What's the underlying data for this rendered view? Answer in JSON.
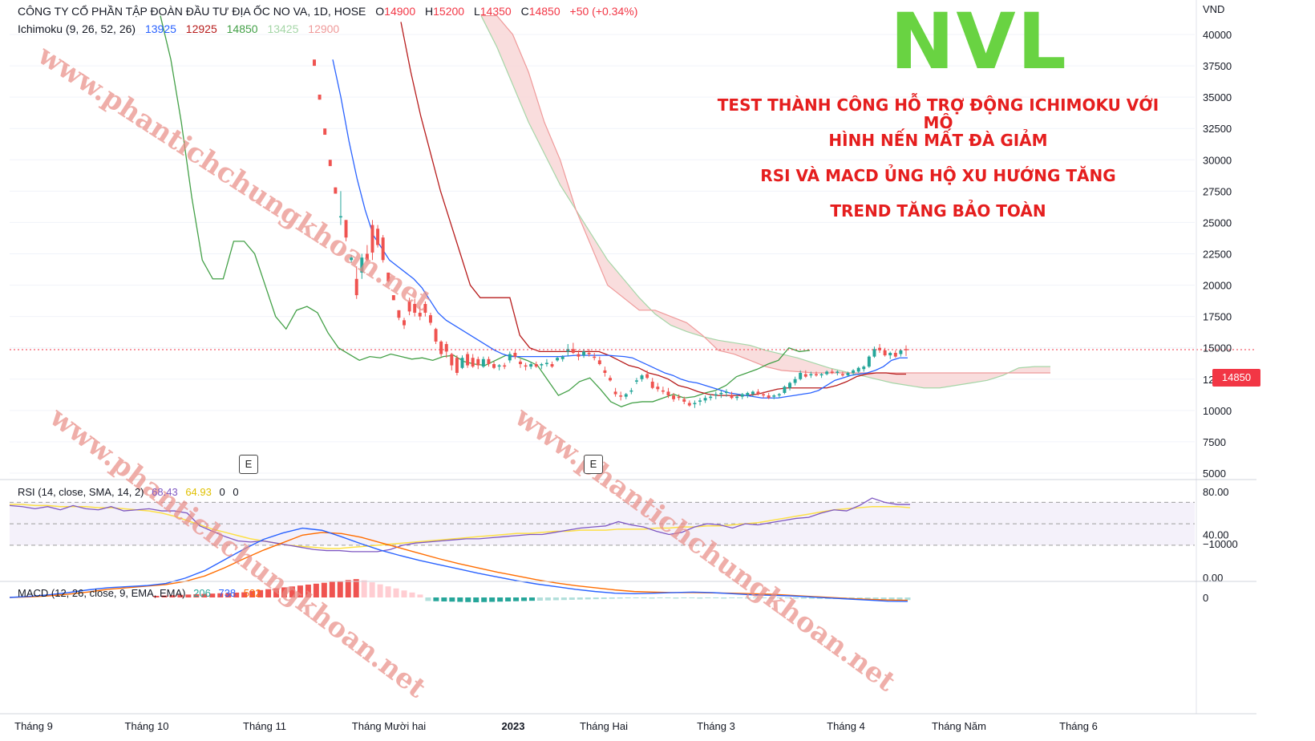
{
  "header": {
    "symbol_line": "CÔNG TY CỔ PHẦN TẬP ĐOÀN ĐẦU TƯ ĐỊA ỐC NO VA, 1D, HOSE",
    "o_label": "O",
    "o_value": "14900",
    "h_label": "H",
    "h_value": "15200",
    "l_label": "L",
    "l_value": "14350",
    "c_label": "C",
    "c_value": "14850",
    "change": "+50 (+0.34%)"
  },
  "ichimoku": {
    "label": "Ichimoku (9, 26, 52, 26)",
    "values": [
      "13925",
      "12925",
      "14850",
      "13425",
      "12900"
    ],
    "colors": [
      "#2962ff",
      "#b71c1c",
      "#43a047",
      "#a5d6a7",
      "#ef9a9a"
    ]
  },
  "annotation": {
    "ticker": "NVL",
    "line1": "TEST THÀNH CÔNG HỖ TRỢ ĐỘNG ICHIMOKU VỚI MÔ",
    "line2": "HÌNH NẾN MẤT ĐÀ GIẢM",
    "line3": "RSI VÀ MACD ỦNG HỘ XU HƯỚNG TĂNG",
    "line4": "TREND TĂNG BẢO TOÀN"
  },
  "watermark": "www.phantichchungkhoan.net",
  "earnings_marker": "E",
  "rsi_pane": {
    "label": "RSI (14, close, SMA, 14, 2)",
    "values": [
      "68.43",
      "64.93",
      "0",
      "0"
    ],
    "axis": [
      "80.00",
      "40.00",
      "0.00"
    ]
  },
  "macd_pane": {
    "label": "MACD (12, 26, close, 9, EMA, EMA)",
    "values": [
      "206",
      "738",
      "532"
    ],
    "axis": [
      "0",
      "−10000"
    ]
  },
  "colors": {
    "up": "#26a69a",
    "down": "#ef5350",
    "tenkan": "#2962ff",
    "kijun": "#b71c1c",
    "chikou": "#43a047",
    "cloud_bear": "#f8d7d7",
    "cloud_bull": "#dff0df",
    "rsi": "#7e57c2",
    "rsi_ma": "#fde047",
    "macd": "#2962ff",
    "signal": "#ff6d00"
  },
  "chart_data": {
    "type": "candlestick",
    "currency": "VND",
    "last_price": "14850",
    "y_axis": [
      "VND",
      "40000",
      "37500",
      "35000",
      "32500",
      "30000",
      "27500",
      "25000",
      "22500",
      "20000",
      "17500",
      "15000",
      "12500",
      "10000",
      "7500",
      "5000"
    ],
    "x_ticks": [
      "Tháng 9",
      "Tháng 10",
      "Tháng 11",
      "Tháng Mười hai",
      "2023",
      "Tháng Hai",
      "Tháng 3",
      "Tháng 4",
      "Tháng Năm",
      "Tháng 6"
    ],
    "ylim": [
      5000,
      41500
    ],
    "candles_ohlc": [
      [
        38000,
        38000,
        37500,
        37500
      ],
      [
        35200,
        35200,
        34800,
        34800
      ],
      [
        32500,
        32500,
        32000,
        32000
      ],
      [
        30000,
        30000,
        29500,
        29500
      ],
      [
        27800,
        27800,
        27300,
        27300
      ],
      [
        25500,
        27500,
        24800,
        25500
      ],
      [
        25200,
        25200,
        23500,
        23800
      ],
      [
        22000,
        22400,
        21800,
        22200
      ],
      [
        20500,
        21500,
        18900,
        19200
      ],
      [
        21000,
        22500,
        20500,
        22200
      ],
      [
        22500,
        23200,
        21900,
        22000
      ],
      [
        24800,
        25200,
        22000,
        22600
      ],
      [
        24500,
        24800,
        23000,
        23200
      ],
      [
        23800,
        24000,
        21800,
        22000
      ],
      [
        21000,
        21000,
        20200,
        20300
      ],
      [
        19200,
        19200,
        18800,
        18800
      ],
      [
        18000,
        18000,
        17200,
        17400
      ],
      [
        17200,
        17400,
        16500,
        16800
      ],
      [
        18700,
        19000,
        17600,
        17900
      ],
      [
        18500,
        18900,
        17500,
        17800
      ],
      [
        17800,
        18300,
        17200,
        17500
      ],
      [
        18500,
        18700,
        17500,
        17800
      ],
      [
        17600,
        17800,
        16800,
        17000
      ],
      [
        16500,
        16600,
        15300,
        15500
      ],
      [
        15500,
        15600,
        14300,
        14500
      ],
      [
        15300,
        15500,
        14200,
        14700
      ],
      [
        14500,
        14600,
        13200,
        13600
      ],
      [
        14200,
        14400,
        12800,
        13000
      ],
      [
        13400,
        14400,
        13300,
        14200
      ],
      [
        14500,
        14700,
        13400,
        13600
      ],
      [
        14200,
        14500,
        13400,
        13500
      ],
      [
        14100,
        14300,
        13300,
        13600
      ],
      [
        13500,
        14300,
        13400,
        14100
      ],
      [
        14100,
        14300,
        13500,
        13700
      ],
      [
        13700,
        13900,
        13300,
        13400
      ],
      [
        13500,
        13700,
        13200,
        13600
      ],
      [
        13600,
        13800,
        13300,
        13500
      ],
      [
        14000,
        14700,
        13800,
        14500
      ],
      [
        14600,
        14800,
        14100,
        14300
      ],
      [
        13900,
        14100,
        13400,
        13700
      ],
      [
        13600,
        13800,
        13200,
        13500
      ],
      [
        13500,
        13900,
        13300,
        13700
      ],
      [
        13700,
        13900,
        13400,
        13500
      ],
      [
        13600,
        13800,
        13300,
        13700
      ],
      [
        13700,
        14100,
        13500,
        13800
      ],
      [
        13700,
        13900,
        13400,
        13500
      ],
      [
        14000,
        14300,
        13900,
        14200
      ],
      [
        14100,
        14400,
        13900,
        14300
      ],
      [
        14700,
        15300,
        14300,
        14900
      ],
      [
        14900,
        15400,
        14500,
        14600
      ],
      [
        14500,
        14800,
        14000,
        14300
      ],
      [
        14400,
        14900,
        14200,
        14700
      ],
      [
        14600,
        14900,
        14300,
        14500
      ],
      [
        14300,
        14600,
        14000,
        14200
      ],
      [
        14000,
        14300,
        13600,
        13700
      ],
      [
        13200,
        13500,
        12700,
        13000
      ],
      [
        12600,
        12800,
        12300,
        12400
      ],
      [
        11500,
        11800,
        11100,
        11300
      ],
      [
        11200,
        11500,
        10800,
        11100
      ],
      [
        11100,
        11400,
        10900,
        11300
      ],
      [
        11500,
        11800,
        11300,
        11600
      ],
      [
        12300,
        12600,
        12100,
        12400
      ],
      [
        12500,
        12900,
        12300,
        12800
      ],
      [
        12900,
        13200,
        12500,
        12600
      ],
      [
        12300,
        12600,
        11700,
        11800
      ],
      [
        11900,
        12200,
        11500,
        11700
      ],
      [
        11600,
        11900,
        11300,
        11500
      ],
      [
        11500,
        11800,
        11000,
        11200
      ],
      [
        11200,
        11400,
        10700,
        10900
      ],
      [
        11100,
        11300,
        10800,
        11000
      ],
      [
        10900,
        11100,
        10500,
        10700
      ],
      [
        10600,
        10800,
        10300,
        10400
      ],
      [
        10500,
        10800,
        10200,
        10600
      ],
      [
        10700,
        11000,
        10400,
        10800
      ],
      [
        10800,
        11200,
        10600,
        11000
      ],
      [
        11000,
        11300,
        10800,
        11100
      ],
      [
        11200,
        11500,
        10900,
        11300
      ],
      [
        11300,
        11600,
        11000,
        11400
      ],
      [
        11400,
        11700,
        11100,
        11500
      ],
      [
        11200,
        11500,
        10900,
        11000
      ],
      [
        11000,
        11300,
        10800,
        11100
      ],
      [
        11100,
        11400,
        10900,
        11300
      ],
      [
        11200,
        11500,
        11000,
        11400
      ],
      [
        11300,
        11600,
        11100,
        11500
      ],
      [
        11500,
        11700,
        11200,
        11300
      ],
      [
        11300,
        11500,
        11000,
        11200
      ],
      [
        11200,
        11400,
        10900,
        11000
      ],
      [
        11100,
        11300,
        10900,
        11200
      ],
      [
        11200,
        11400,
        11000,
        11300
      ],
      [
        11400,
        12000,
        11300,
        11900
      ],
      [
        11800,
        12300,
        11600,
        12200
      ],
      [
        12200,
        12700,
        12000,
        12500
      ],
      [
        12500,
        13200,
        12400,
        13000
      ],
      [
        12900,
        13200,
        12600,
        12700
      ],
      [
        12800,
        13100,
        12600,
        12900
      ],
      [
        12900,
        13100,
        12700,
        12800
      ],
      [
        12800,
        13000,
        12600,
        12900
      ],
      [
        12900,
        13200,
        12800,
        13100
      ],
      [
        13100,
        13300,
        12900,
        13000
      ],
      [
        13000,
        13200,
        12800,
        13100
      ],
      [
        12900,
        13100,
        12700,
        12800
      ],
      [
        12800,
        13100,
        12700,
        13000
      ],
      [
        13000,
        13300,
        12800,
        13200
      ],
      [
        13100,
        13500,
        13000,
        13400
      ],
      [
        13300,
        13600,
        13100,
        13500
      ],
      [
        13500,
        14400,
        13400,
        14300
      ],
      [
        14300,
        15100,
        14200,
        14900
      ],
      [
        15000,
        15300,
        14600,
        14800
      ],
      [
        14800,
        15000,
        14300,
        14400
      ],
      [
        14400,
        14700,
        14100,
        14600
      ],
      [
        14600,
        14800,
        14200,
        14300
      ],
      [
        14500,
        14900,
        14300,
        14800
      ],
      [
        14900,
        15200,
        14350,
        14850
      ]
    ],
    "tenkan": [
      38000,
      35000,
      31500,
      28500,
      26000,
      24000,
      23000,
      22000,
      21500,
      21000,
      20500,
      19800,
      18800,
      17800,
      17200,
      16800,
      16400,
      16000,
      15600,
      15200,
      14800,
      14500,
      14300,
      14300,
      14300,
      14300,
      14300,
      14300,
      14300,
      14350,
      14400,
      14400,
      14400,
      14400,
      14400,
      14350,
      14300,
      14200,
      13900,
      13600,
      13300,
      13000,
      12800,
      12500,
      12300,
      12200,
      12000,
      11800,
      11600,
      11400,
      11300,
      11200,
      11100,
      11000,
      11000,
      11000,
      11100,
      11200,
      11300,
      11400,
      11600,
      12000,
      12400,
      12600,
      12800,
      12900,
      13000,
      13200,
      13500,
      14000,
      14200,
      14200
    ],
    "kijun": [
      41000,
      37000,
      33500,
      30500,
      27500,
      25000,
      22500,
      20000,
      19000,
      19000,
      19000,
      19000,
      16000,
      15000,
      14700,
      14700,
      14700,
      14700,
      14700,
      14700,
      14700,
      14400,
      14000,
      13600,
      13400,
      13000,
      12800,
      12500,
      12000,
      11800,
      11500,
      11300,
      11200,
      11200,
      11200,
      11200,
      11300,
      11500,
      11700,
      11800,
      11800,
      11800,
      11800,
      11800,
      12000,
      12300,
      12700,
      12900,
      13000,
      13000,
      12900,
      12900
    ],
    "cloud_a": [
      41500,
      39000,
      36000,
      33000,
      30500,
      28000,
      26000,
      24000,
      22000,
      20500,
      19000,
      17700,
      16800,
      16300,
      15900,
      15600,
      15400,
      15200,
      14800,
      14500,
      14200,
      13800,
      13400,
      13100,
      12800,
      12500,
      12200,
      12000,
      11800,
      11800,
      12000,
      12200,
      12400,
      12800,
      13400,
      13500,
      13500
    ],
    "cloud_b": [
      41500,
      41500,
      40000,
      37000,
      33000,
      30000,
      26000,
      23000,
      20000,
      19000,
      18000,
      18000,
      17500,
      17000,
      16000,
      14800,
      14500,
      14000,
      13500,
      13200,
      13100,
      13000,
      13000,
      13000,
      13000,
      13000,
      13000,
      13000,
      13000,
      13000,
      13000,
      13000,
      13000,
      13000,
      13000,
      13000,
      13000
    ],
    "chikou": [
      41500,
      38000,
      33000,
      27000,
      22000,
      20500,
      20500,
      23500,
      23500,
      22500,
      20000,
      17500,
      16500,
      18000,
      18300,
      17800,
      16200,
      15000,
      14500,
      14000,
      14300,
      14200,
      14500,
      14300,
      14100,
      14200,
      14000,
      14300,
      14400,
      13900,
      13700,
      13600,
      14000,
      14400,
      14300,
      14000,
      13600,
      12400,
      11200,
      11600,
      12300,
      12600,
      11700,
      10700,
      10300,
      10600,
      10700,
      10700,
      11000,
      11300,
      11000,
      11100,
      11400,
      11600,
      12000,
      12700,
      13000,
      13300,
      13700,
      14000,
      15000,
      14700,
      14800
    ]
  }
}
